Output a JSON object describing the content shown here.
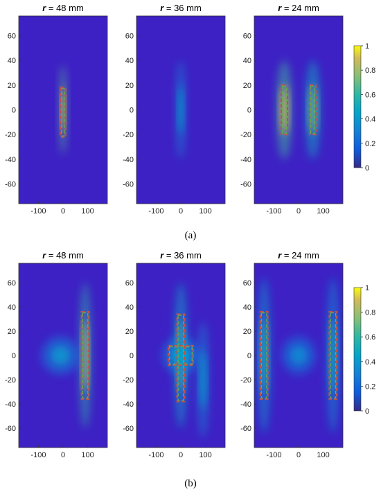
{
  "figure": {
    "caption_a": "(a)",
    "caption_b": "(b)",
    "colors": {
      "background": "#3d21c4",
      "rect_outer": "#c0504d",
      "rect_inner": "#6aa84f"
    }
  },
  "chart_data": [
    {
      "type": "heatmap",
      "title": "r = 48 mm",
      "row": "a",
      "xlim": [
        -180,
        180
      ],
      "ylim": [
        -76,
        76
      ],
      "xticks": [
        -100,
        0,
        100
      ],
      "yticks": [
        60,
        40,
        20,
        0,
        -20,
        -40,
        -60
      ],
      "regions": [
        {
          "x": [
            -10,
            10
          ],
          "y": [
            -22,
            18
          ]
        }
      ],
      "blobs": [
        {
          "x": 0,
          "y": 0,
          "sx": 8,
          "sy": 18,
          "value": 0.95
        }
      ]
    },
    {
      "type": "heatmap",
      "title": "r = 36 mm",
      "row": "a",
      "xlim": [
        -180,
        180
      ],
      "ylim": [
        -76,
        76
      ],
      "xticks": [
        -100,
        0,
        100
      ],
      "yticks": [
        60,
        40,
        20,
        0,
        -20,
        -40,
        -60
      ],
      "regions": [],
      "blobs": [
        {
          "x": 0,
          "y": 0,
          "sx": 10,
          "sy": 20,
          "value": 0.45
        }
      ]
    },
    {
      "type": "heatmap",
      "title": "r = 24 mm",
      "row": "a",
      "xlim": [
        -180,
        180
      ],
      "ylim": [
        -76,
        76
      ],
      "xticks": [
        -100,
        0,
        100
      ],
      "yticks": [
        60,
        40,
        20,
        0,
        -20,
        -40,
        -60
      ],
      "regions": [
        {
          "x": [
            -70,
            -45
          ],
          "y": [
            -20,
            20
          ]
        },
        {
          "x": [
            45,
            70
          ],
          "y": [
            -20,
            20
          ]
        }
      ],
      "blobs": [
        {
          "x": -58,
          "y": 0,
          "sx": 16,
          "sy": 20,
          "value": 0.9
        },
        {
          "x": 58,
          "y": 0,
          "sx": 16,
          "sy": 20,
          "value": 0.7
        }
      ]
    },
    {
      "type": "heatmap",
      "title": "r = 48 mm",
      "row": "b",
      "xlim": [
        -180,
        180
      ],
      "ylim": [
        -76,
        76
      ],
      "xticks": [
        -100,
        0,
        100
      ],
      "yticks": [
        60,
        40,
        20,
        0,
        -20,
        -40,
        -60
      ],
      "regions": [
        {
          "x": [
            75,
            105
          ],
          "y": [
            -36,
            36
          ]
        }
      ],
      "blobs": [
        {
          "x": 90,
          "y": 0,
          "sx": 12,
          "sy": 30,
          "value": 0.85
        },
        {
          "x": -10,
          "y": 0,
          "sx": 40,
          "sy": 8,
          "value": 0.4
        }
      ]
    },
    {
      "type": "heatmap",
      "title": "r = 36 mm",
      "row": "b",
      "xlim": [
        -180,
        180
      ],
      "ylim": [
        -76,
        76
      ],
      "xticks": [
        -100,
        0,
        100
      ],
      "yticks": [
        60,
        40,
        20,
        0,
        -20,
        -40,
        -60
      ],
      "regions": [
        {
          "x": [
            -15,
            15
          ],
          "y": [
            -38,
            34
          ]
        },
        {
          "x": [
            -50,
            50
          ],
          "y": [
            -8,
            8
          ]
        }
      ],
      "blobs": [
        {
          "x": 0,
          "y": 0,
          "sx": 14,
          "sy": 30,
          "value": 0.65
        },
        {
          "x": 0,
          "y": 0,
          "sx": 38,
          "sy": 8,
          "value": 0.45
        },
        {
          "x": 90,
          "y": -20,
          "sx": 12,
          "sy": 24,
          "value": 0.45
        }
      ]
    },
    {
      "type": "heatmap",
      "title": "r = 24 mm",
      "row": "b",
      "xlim": [
        -180,
        180
      ],
      "ylim": [
        -76,
        76
      ],
      "xticks": [
        -100,
        0,
        100
      ],
      "yticks": [
        60,
        40,
        20,
        0,
        -20,
        -40,
        -60
      ],
      "regions": [
        {
          "x": [
            -155,
            -125
          ],
          "y": [
            -36,
            36
          ]
        },
        {
          "x": [
            125,
            155
          ],
          "y": [
            -36,
            36
          ]
        }
      ],
      "blobs": [
        {
          "x": -140,
          "y": 0,
          "sx": 14,
          "sy": 32,
          "value": 0.55
        },
        {
          "x": 140,
          "y": 0,
          "sx": 14,
          "sy": 32,
          "value": 0.5
        },
        {
          "x": 0,
          "y": 0,
          "sx": 36,
          "sy": 8,
          "value": 0.35
        }
      ]
    }
  ],
  "colorbars": [
    {
      "row": "a",
      "range": [
        0,
        1
      ],
      "ticks": [
        1,
        0.8,
        0.6,
        0.4,
        0.2,
        0
      ]
    },
    {
      "row": "b",
      "range": [
        0,
        1
      ],
      "ticks": [
        1,
        0.8,
        0.6,
        0.4,
        0.2,
        0
      ]
    }
  ]
}
